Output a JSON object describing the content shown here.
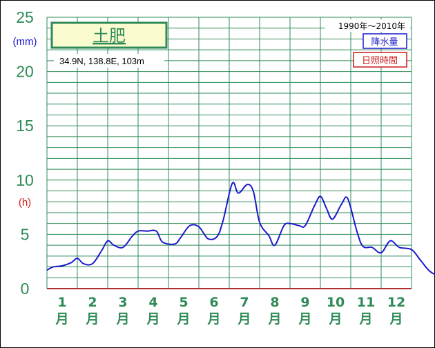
{
  "chart_data": {
    "type": "line",
    "station": "土肥",
    "coordinates": "34.9N,  138.8E,  103m",
    "period": "1990年〜2010年",
    "legend": [
      {
        "label": "降水量",
        "color": "#1a1acc"
      },
      {
        "label": "日照時間",
        "color": "#cc1a1a"
      }
    ],
    "y_left_unit": "(mm)",
    "y_right_unit": "(h)",
    "y_ticks": [
      "0",
      "5",
      "10",
      "15",
      "20",
      "25"
    ],
    "ylim": [
      0,
      25
    ],
    "months": [
      "1月",
      "2月",
      "3月",
      "4月",
      "5月",
      "6月",
      "7月",
      "8月",
      "9月",
      "10月",
      "11月",
      "12月"
    ],
    "series": [
      {
        "name": "降水量",
        "color": "#1a1acc",
        "points": [
          [
            0.5,
            1.7
          ],
          [
            0.7,
            2.0
          ],
          [
            1.0,
            2.1
          ],
          [
            1.3,
            2.4
          ],
          [
            1.5,
            2.8
          ],
          [
            1.7,
            2.3
          ],
          [
            2.0,
            2.3
          ],
          [
            2.3,
            3.5
          ],
          [
            2.5,
            4.4
          ],
          [
            2.7,
            4.0
          ],
          [
            3.0,
            3.8
          ],
          [
            3.3,
            4.8
          ],
          [
            3.5,
            5.3
          ],
          [
            3.8,
            5.3
          ],
          [
            4.1,
            5.3
          ],
          [
            4.3,
            4.3
          ],
          [
            4.7,
            4.1
          ],
          [
            4.9,
            4.7
          ],
          [
            5.2,
            5.8
          ],
          [
            5.5,
            5.7
          ],
          [
            5.8,
            4.6
          ],
          [
            6.1,
            4.8
          ],
          [
            6.3,
            6.3
          ],
          [
            6.6,
            9.7
          ],
          [
            6.8,
            8.8
          ],
          [
            7.1,
            9.6
          ],
          [
            7.3,
            8.9
          ],
          [
            7.5,
            6.1
          ],
          [
            7.8,
            4.9
          ],
          [
            8.0,
            4.0
          ],
          [
            8.3,
            5.8
          ],
          [
            8.5,
            6.0
          ],
          [
            8.8,
            5.8
          ],
          [
            9.0,
            5.8
          ],
          [
            9.3,
            7.6
          ],
          [
            9.5,
            8.5
          ],
          [
            9.7,
            7.4
          ],
          [
            9.9,
            6.4
          ],
          [
            10.2,
            7.8
          ],
          [
            10.4,
            8.3
          ],
          [
            10.7,
            5.3
          ],
          [
            10.9,
            3.9
          ],
          [
            11.2,
            3.8
          ],
          [
            11.5,
            3.3
          ],
          [
            11.8,
            4.4
          ],
          [
            12.1,
            3.8
          ],
          [
            12.5,
            3.6
          ],
          [
            12.8,
            2.6
          ],
          [
            13.1,
            1.6
          ],
          [
            13.4,
            1.2
          ],
          [
            13.6,
            1.3
          ],
          [
            13.8,
            1.7
          ]
        ]
      }
    ],
    "grid": true
  },
  "colors": {
    "accent_green": "#2e8b57",
    "precip_blue": "#1a1acc",
    "sunshine_red": "#cc1a1a",
    "title_box_bg": "#fbfbd0"
  }
}
